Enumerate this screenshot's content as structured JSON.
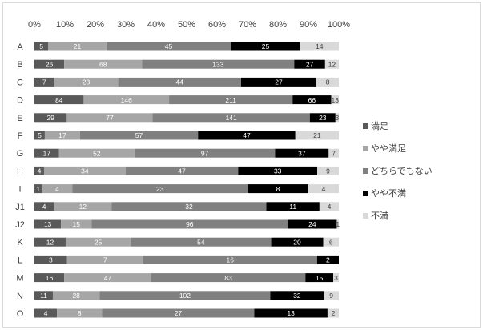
{
  "chart_data": {
    "type": "bar",
    "orientation": "horizontal",
    "stacking": "percent",
    "categories": [
      "A",
      "B",
      "C",
      "D",
      "E",
      "F",
      "G",
      "H",
      "I",
      "J1",
      "J2",
      "K",
      "L",
      "M",
      "N",
      "O"
    ],
    "series": [
      {
        "name": "満足",
        "color": "#595959",
        "label_color": "#ffffff",
        "values": [
          5,
          26,
          7,
          84,
          29,
          5,
          17,
          4,
          1,
          4,
          13,
          12,
          3,
          16,
          11,
          4
        ]
      },
      {
        "name": "やや満足",
        "color": "#a6a6a6",
        "label_color": "#ffffff",
        "values": [
          21,
          68,
          23,
          146,
          77,
          17,
          52,
          34,
          4,
          12,
          15,
          25,
          7,
          47,
          28,
          8
        ]
      },
      {
        "name": "どちらでもない",
        "color": "#808080",
        "label_color": "#ffffff",
        "values": [
          45,
          133,
          44,
          211,
          141,
          57,
          97,
          47,
          23,
          32,
          96,
          54,
          16,
          83,
          102,
          27
        ]
      },
      {
        "name": "やや不満",
        "color": "#000000",
        "label_color": "#ffffff",
        "values": [
          25,
          27,
          27,
          66,
          23,
          47,
          37,
          33,
          8,
          11,
          24,
          20,
          2,
          15,
          32,
          13
        ]
      },
      {
        "name": "不満",
        "color": "#d9d9d9",
        "label_color": "#404040",
        "values": [
          14,
          12,
          8,
          13,
          3,
          21,
          7,
          9,
          4,
          4,
          1,
          6,
          0,
          3,
          9,
          2
        ]
      }
    ],
    "x_ticks": [
      "0%",
      "10%",
      "20%",
      "30%",
      "40%",
      "50%",
      "60%",
      "70%",
      "80%",
      "90%",
      "100%"
    ],
    "xlim": [
      0,
      100
    ],
    "legend_position": "right",
    "grid": false
  }
}
